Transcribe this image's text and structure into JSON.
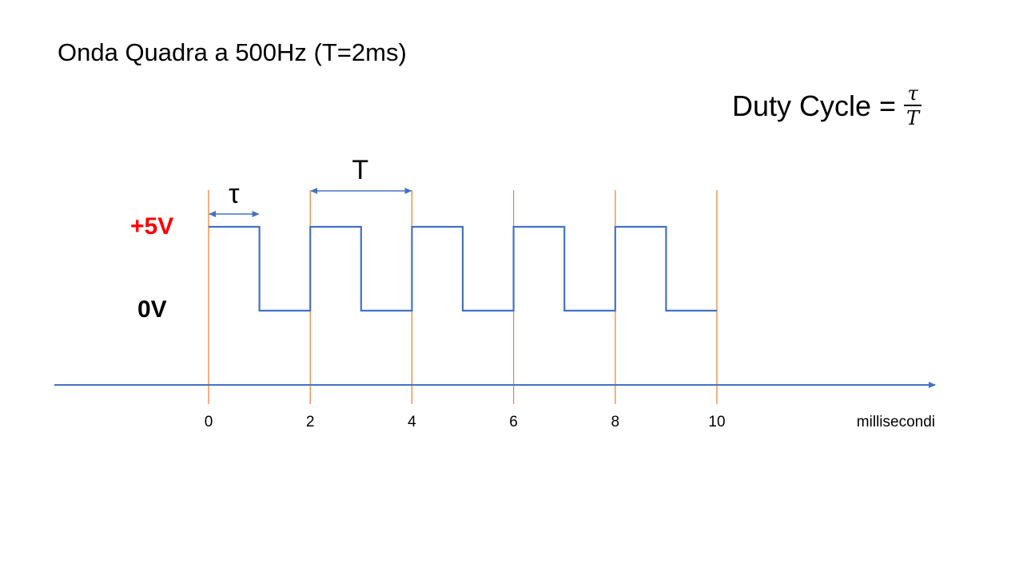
{
  "title": "Onda Quadra a 500Hz (T=2ms)",
  "formula": {
    "lhs": "Duty Cycle =",
    "numerator": "τ",
    "denominator": "T"
  },
  "levels": {
    "high": "+5V",
    "low": "0V",
    "high_color": "#ff0000"
  },
  "axis": {
    "unit_label": "millisecondi",
    "ticks": [
      "0",
      "2",
      "4",
      "6",
      "8",
      "10"
    ],
    "tick_values": [
      0,
      2,
      4,
      6,
      8,
      10
    ],
    "axis_color": "#4472c4",
    "marker_color": "#ed7d31"
  },
  "signal": {
    "period_ms": 2,
    "high_ms": 1,
    "start_ms": 0,
    "end_ms": 10,
    "color": "#4472c4"
  },
  "annotations": {
    "tau_label": "τ",
    "period_label": "T",
    "tau_span_ms": [
      0,
      1
    ],
    "period_span_ms": [
      2,
      4
    ]
  }
}
